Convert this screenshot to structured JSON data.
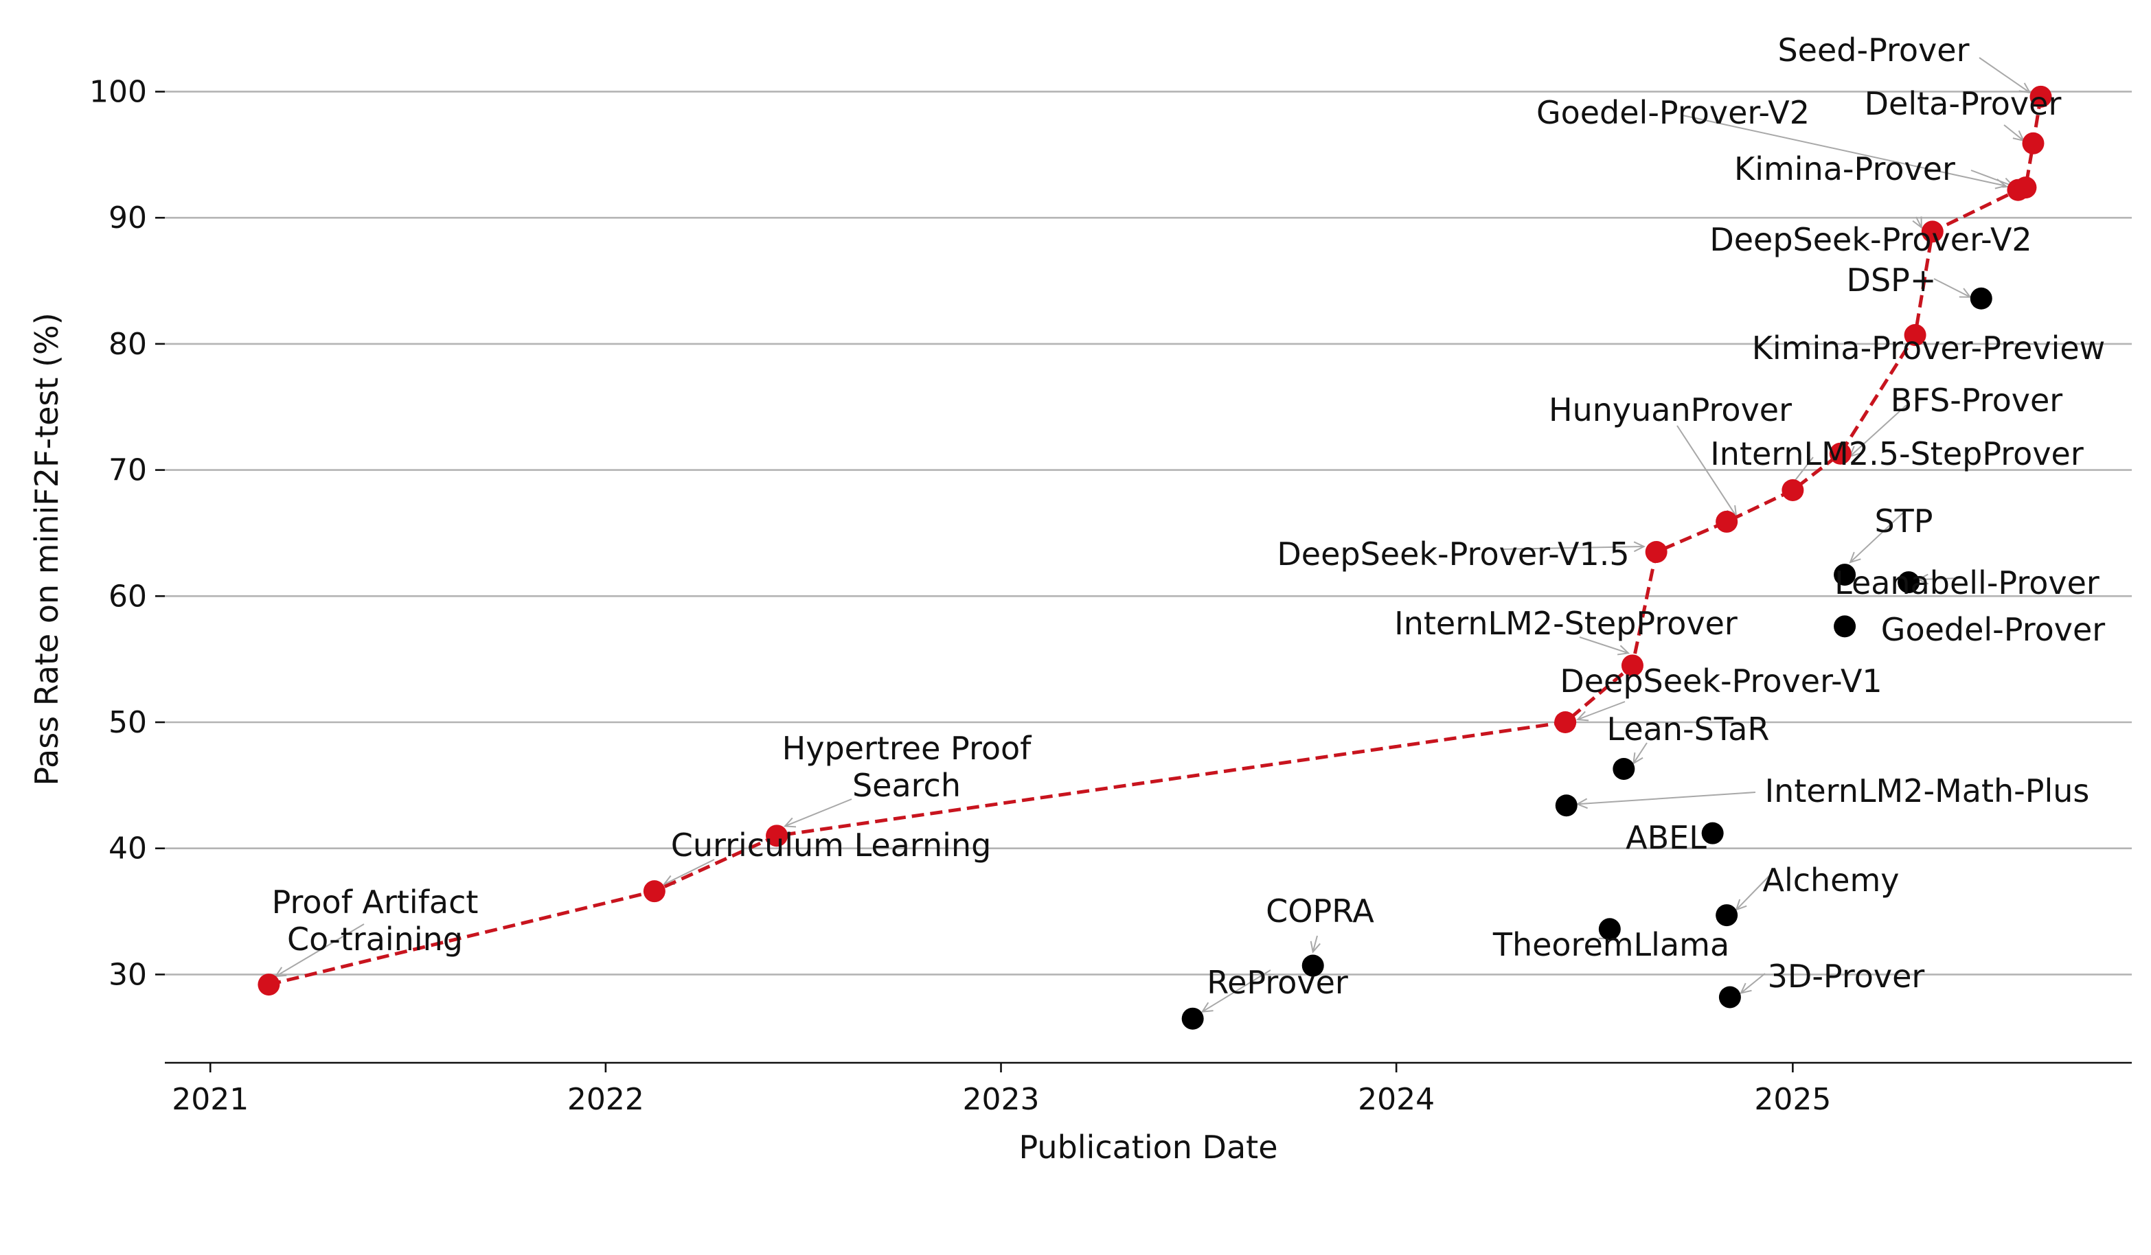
{
  "chart_data": {
    "type": "scatter",
    "xlabel": "Publication Date",
    "ylabel": "Pass Rate on miniF2F-test (%)",
    "x_ticks": [
      "2021",
      "2022",
      "2023",
      "2024",
      "2025"
    ],
    "y_ticks": [
      30,
      40,
      50,
      60,
      70,
      80,
      90,
      100
    ],
    "xlim": [
      "2020-11-20",
      "2025-11-10"
    ],
    "ylim": [
      23,
      104
    ],
    "grid": "horizontal",
    "colors": {
      "frontier": "#d40f1b",
      "frontier_line": "#c8141e",
      "other": "#000000"
    },
    "points": [
      {
        "name": "Proof Artifact\nCo-training",
        "date": "2021-02-24",
        "value": 29.2,
        "frontier": true
      },
      {
        "name": "Curriculum Learning",
        "date": "2022-02-15",
        "value": 36.6,
        "frontier": true
      },
      {
        "name": "Hypertree Proof\nSearch",
        "date": "2022-06-08",
        "value": 41.0,
        "frontier": true
      },
      {
        "name": "ReProver",
        "date": "2023-06-27",
        "value": 26.5,
        "frontier": false
      },
      {
        "name": "COPRA",
        "date": "2023-10-16",
        "value": 30.7,
        "frontier": false
      },
      {
        "name": "DeepSeek-Prover-V1",
        "date": "2024-06-05",
        "value": 50.0,
        "frontier": true
      },
      {
        "name": "InternLM2-Math-Plus",
        "date": "2024-06-06",
        "value": 43.4,
        "frontier": false
      },
      {
        "name": "TheoremLlama",
        "date": "2024-07-16",
        "value": 33.6,
        "frontier": false
      },
      {
        "name": "Lean-STaR",
        "date": "2024-07-29",
        "value": 46.3,
        "frontier": false
      },
      {
        "name": "InternLM2-StepProver",
        "date": "2024-08-06",
        "value": 54.5,
        "frontier": true
      },
      {
        "name": "DeepSeek-Prover-V1.5",
        "date": "2024-08-28",
        "value": 63.5,
        "frontier": true
      },
      {
        "name": "ABEL",
        "date": "2024-10-19",
        "value": 41.2,
        "frontier": false
      },
      {
        "name": "HunyuanProver",
        "date": "2024-11-01",
        "value": 65.9,
        "frontier": true
      },
      {
        "name": "Alchemy",
        "date": "2024-11-01",
        "value": 34.7,
        "frontier": false
      },
      {
        "name": "3D-Prover",
        "date": "2024-11-04",
        "value": 28.2,
        "frontier": false
      },
      {
        "name": "InternLM2.5-StepProver",
        "date": "2025-01-01",
        "value": 68.4,
        "frontier": true
      },
      {
        "name": "BFS-Prover",
        "date": "2025-02-14",
        "value": 71.3,
        "frontier": true
      },
      {
        "name": "STP",
        "date": "2025-02-18",
        "value": 61.7,
        "frontier": false
      },
      {
        "name": "Goedel-Prover",
        "date": "2025-02-18",
        "value": 57.6,
        "frontier": false
      },
      {
        "name": "Leanabell-Prover",
        "date": "2025-04-18",
        "value": 61.1,
        "frontier": false
      },
      {
        "name": "Kimina-Prover-Preview",
        "date": "2025-04-24",
        "value": 80.7,
        "frontier": true
      },
      {
        "name": "DeepSeek-Prover-V2",
        "date": "2025-05-10",
        "value": 88.9,
        "frontier": true
      },
      {
        "name": "DSP+",
        "date": "2025-06-24",
        "value": 83.6,
        "frontier": false
      },
      {
        "name": "Goedel-Prover-V2",
        "date": "2025-07-28",
        "value": 92.2,
        "frontier": true
      },
      {
        "name": "Kimina-Prover",
        "date": "2025-08-04",
        "value": 92.4,
        "frontier": true
      },
      {
        "name": "Delta-Prover",
        "date": "2025-08-11",
        "value": 95.9,
        "frontier": true
      },
      {
        "name": "Seed-Prover",
        "date": "2025-08-18",
        "value": 99.6,
        "frontier": true
      }
    ]
  }
}
